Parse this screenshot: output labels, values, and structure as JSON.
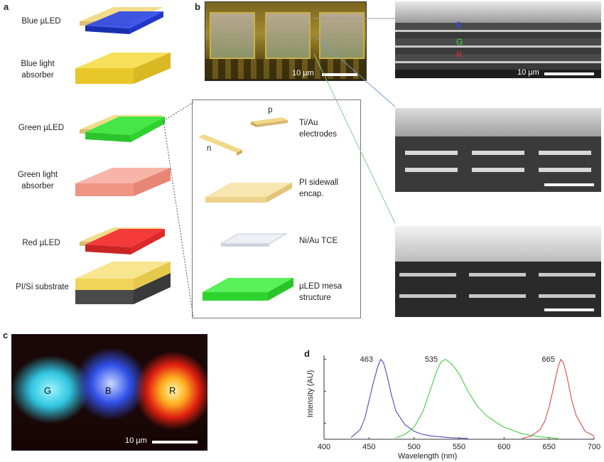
{
  "panel_labels": {
    "a": "a",
    "b": "b",
    "c": "c",
    "d": "d"
  },
  "layers": [
    {
      "label": "Blue µLED",
      "color": "#1f3ee6"
    },
    {
      "label": "Blue light absorber",
      "color": "#f2d638"
    },
    {
      "label": "Green µLED",
      "color": "#36e033"
    },
    {
      "label": "Green light absorber",
      "color": "#f49b8e"
    },
    {
      "label": "Red µLED",
      "color": "#f12d2d"
    },
    {
      "label": "PI/Si substrate",
      "color": "#f3d968"
    }
  ],
  "exploded_view": {
    "p_label": "p",
    "n_label": "n",
    "items": [
      {
        "label": "Ti/Au electrodes"
      },
      {
        "label": "PI sidewall encap."
      },
      {
        "label": "Ni/Au TCE"
      },
      {
        "label": "µLED mesa structure"
      }
    ]
  },
  "panel_b": {
    "micrograph_scale": "10 µm",
    "sem_scale": "10 µm",
    "sem_letters": {
      "b": "B",
      "g": "G",
      "r": "R"
    }
  },
  "panel_c": {
    "letters": [
      "G",
      "B",
      "R"
    ],
    "scale": "10 µm"
  },
  "chart_data": {
    "type": "line",
    "xlabel": "Wavelength (nm)",
    "ylabel": "Intensity (AU)",
    "xlim": [
      400,
      700
    ],
    "xticks": [
      400,
      450,
      500,
      550,
      600,
      650,
      700
    ],
    "ylim": [
      0,
      1.05
    ],
    "series": [
      {
        "peak_label": "463",
        "peak": 463,
        "color": "#3a3ab8",
        "x": [
          430,
          440,
          445,
          450,
          455,
          460,
          463,
          466,
          470,
          475,
          480,
          490,
          500,
          510,
          520,
          540,
          560
        ],
        "y": [
          0.02,
          0.12,
          0.25,
          0.48,
          0.72,
          0.92,
          1.0,
          0.96,
          0.8,
          0.55,
          0.35,
          0.18,
          0.1,
          0.06,
          0.04,
          0.02,
          0.01
        ]
      },
      {
        "peak_label": "535",
        "peak": 535,
        "color": "#2ecc2e",
        "x": [
          480,
          490,
          500,
          510,
          520,
          525,
          530,
          535,
          540,
          545,
          550,
          560,
          570,
          580,
          590,
          600,
          620,
          640,
          660
        ],
        "y": [
          0.02,
          0.06,
          0.15,
          0.35,
          0.68,
          0.85,
          0.97,
          1.0,
          0.96,
          0.9,
          0.82,
          0.6,
          0.42,
          0.3,
          0.22,
          0.15,
          0.07,
          0.03,
          0.01
        ]
      },
      {
        "peak_label": "665",
        "peak": 665,
        "color": "#d83a3a",
        "x": [
          620,
          630,
          640,
          645,
          650,
          655,
          660,
          663,
          666,
          670,
          675,
          680,
          690,
          700
        ],
        "y": [
          0.01,
          0.04,
          0.12,
          0.22,
          0.4,
          0.65,
          0.9,
          1.0,
          0.96,
          0.78,
          0.5,
          0.3,
          0.1,
          0.04
        ]
      }
    ]
  }
}
